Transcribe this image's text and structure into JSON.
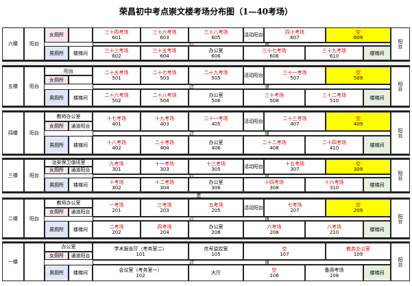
{
  "title": "荣昌初中考点崇文楼考场分布图（1—40考场）",
  "passage_label": "走",
  "floors": [
    {
      "name": "六楼",
      "balcony": "阳台",
      "women": "女厕所",
      "men": "男厕所",
      "stairs": "楼梯间",
      "corridor": [
        "过",
        "道"
      ],
      "right": "阳台",
      "top": [
        {
          "name": "三十四考场",
          "num": "601",
          "color": "#e00000"
        },
        {
          "name": "三十六考场",
          "num": "603",
          "color": "#e00000"
        },
        {
          "name": "三十八考场",
          "num": "605",
          "color": "#e00000"
        },
        {
          "name": "活动阳台"
        },
        {
          "name": "四十考场",
          "num": "607",
          "color": "#e00000"
        },
        {
          "name": "空",
          "num": "609",
          "color": "#e00000",
          "fill": "#ffff00"
        }
      ],
      "bottom": [
        {
          "name": "三十三考场",
          "num": "602",
          "color": "#e00000"
        },
        {
          "name": "三十五考场",
          "num": "604",
          "color": "#e00000"
        },
        {
          "name": "办公室",
          "num": "606"
        },
        {
          "name": "三十七考场",
          "num": "608",
          "color": "#e00000"
        },
        {
          "name": "三十九考场",
          "num": "610",
          "color": "#e00000"
        },
        {
          "name": "楼梯间",
          "fill": "#e6efe0"
        }
      ]
    },
    {
      "name": "五楼",
      "balcony": "阳台",
      "top_left": "阳台",
      "women": "女厕所",
      "men": "男厕所",
      "stairs": "楼梯间",
      "corridor": [
        "过",
        "道"
      ],
      "right": "阳台",
      "top": [
        {
          "name": "二十五考场",
          "num": "501",
          "color": "#e00000"
        },
        {
          "name": "二十七考场",
          "num": "503",
          "color": "#e00000"
        },
        {
          "name": "二十九考场",
          "num": "505",
          "color": "#e00000"
        },
        {
          "name": "活动阳台"
        },
        {
          "name": "三十一考场",
          "num": "507",
          "color": "#e00000"
        },
        {
          "name": "空",
          "num": "509",
          "color": "#e00000",
          "fill": "#ffff00"
        }
      ],
      "bottom": [
        {
          "name": "二十六考场",
          "num": "502",
          "color": "#e00000"
        },
        {
          "name": "二十八考场",
          "num": "504",
          "color": "#e00000"
        },
        {
          "name": "办公室",
          "num": "506"
        },
        {
          "name": "三十考场",
          "num": "508",
          "color": "#e00000"
        },
        {
          "name": "三十二考场",
          "num": "510",
          "color": "#e00000"
        },
        {
          "name": "楼梯间",
          "fill": "#e6efe0"
        }
      ]
    },
    {
      "name": "四楼",
      "balcony": "阳台",
      "top_left": "教师办公室",
      "women": "女厕所",
      "passage": "通道阳台",
      "men": "男厕所",
      "stairs": "楼梯间",
      "corridor": [
        "过",
        "道"
      ],
      "right": "阳台",
      "top": [
        {
          "name": "十七考场",
          "num": "401",
          "color": "#e00000"
        },
        {
          "name": "十九考场",
          "num": "403",
          "color": "#e00000"
        },
        {
          "name": "二十一考场",
          "num": "405",
          "color": "#e00000"
        },
        {
          "name": "活动阳台"
        },
        {
          "name": "二十三考场",
          "num": "407",
          "color": "#e00000"
        },
        {
          "name": "空",
          "num": "409",
          "color": "#e00000",
          "fill": "#ffff00"
        }
      ],
      "bottom": [
        {
          "name": "十八考场",
          "num": "402",
          "color": "#e00000"
        },
        {
          "name": "二十考场",
          "num": "404",
          "color": "#e00000"
        },
        {
          "name": "办公室",
          "num": "406"
        },
        {
          "name": "二十二考场",
          "num": "408",
          "color": "#e00000"
        },
        {
          "name": "二十四考场",
          "num": "410",
          "color": "#e00000"
        },
        {
          "name": "楼梯间",
          "fill": "#e6efe0"
        }
      ]
    },
    {
      "name": "三楼",
      "balcony": "阳台",
      "top_left": "治安保卫值班室",
      "women": "女厕所",
      "passage": "通道阳台",
      "men": "男厕所",
      "stairs": "楼梯间",
      "corridor": [
        "过",
        "道"
      ],
      "right": "阳台",
      "top": [
        {
          "name": "九考场",
          "num": "301",
          "color": "#e00000"
        },
        {
          "name": "十一考场",
          "num": "303",
          "color": "#e00000"
        },
        {
          "name": "十三考场",
          "num": "305",
          "color": "#e00000"
        },
        {
          "name": "活动阳台"
        },
        {
          "name": "十五考场",
          "num": "307",
          "color": "#e00000"
        },
        {
          "name": "空",
          "num": "309",
          "color": "#e00000",
          "fill": "#ffff00"
        }
      ],
      "bottom": [
        {
          "name": "十考场",
          "num": "302",
          "color": "#e00000"
        },
        {
          "name": "十二考场",
          "num": "304",
          "color": "#e00000"
        },
        {
          "name": "办公室",
          "num": "306"
        },
        {
          "name": "十四考场",
          "num": "308",
          "color": "#e00000"
        },
        {
          "name": "十六考场",
          "num": "310",
          "color": "#e00000"
        },
        {
          "name": "楼梯间",
          "fill": "#e6efe0"
        }
      ]
    },
    {
      "name": "二楼",
      "balcony": "阳台",
      "top_left": "教师办公室",
      "women": "女厕所",
      "passage": "通道阳台",
      "men": "男厕所",
      "stairs": "楼梯间",
      "corridor": [
        "过",
        "道"
      ],
      "right": "阳台",
      "top": [
        {
          "name": "一考场",
          "num": "201",
          "color": "#e00000"
        },
        {
          "name": "三考场",
          "num": "203",
          "color": "#e00000"
        },
        {
          "name": "五考场",
          "num": "205",
          "color": "#e00000"
        },
        {
          "name": "活动阳台"
        },
        {
          "name": "七考场",
          "num": "207",
          "color": "#e00000"
        },
        {
          "name": "空",
          "num": "209",
          "color": "#e00000",
          "fill": "#ffff00"
        }
      ],
      "bottom": [
        {
          "name": "二考场",
          "num": "202",
          "color": "#e00000"
        },
        {
          "name": "四考场",
          "num": "204",
          "color": "#e00000"
        },
        {
          "name": "办公室",
          "num": "206"
        },
        {
          "name": "六考场",
          "num": "208",
          "color": "#e00000"
        },
        {
          "name": "八考场",
          "num": "210",
          "color": "#e00000"
        },
        {
          "name": "楼梯间",
          "fill": "#e6efe0"
        }
      ]
    },
    {
      "name": "一楼",
      "top_left": "办公室",
      "women": "女厕所",
      "passage": "通道阳台",
      "men": "男厕所",
      "stairs": "楼梯间",
      "corridor": [
        "过",
        "道"
      ],
      "right": "阳台",
      "top": [
        {
          "name": "学术报告厅（考务室二）",
          "num": "101"
        },
        {
          "name": "信号监控室",
          "num": "105"
        },
        {
          "name": "空",
          "num": "107",
          "color": "#e00000"
        },
        {
          "name": "教务办公室",
          "num": "109",
          "color": "#e00000"
        }
      ],
      "bottom": [
        {
          "name": "会议室（考务室一）",
          "num": "102"
        },
        {
          "name": "大厅"
        },
        {
          "name": "空",
          "num": "106",
          "color": "#e00000"
        },
        {
          "name": "备用考场",
          "num": "108"
        },
        {
          "name": "楼梯间",
          "fill": "#e6efe0"
        }
      ]
    }
  ]
}
